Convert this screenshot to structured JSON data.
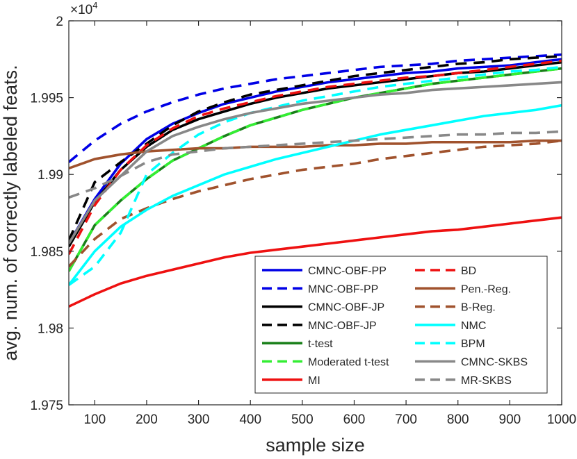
{
  "chart_data": {
    "type": "line",
    "title": "",
    "xlabel": "sample size",
    "ylabel": "avg. num. of correctly labeled feats.",
    "xlim": [
      50,
      1000
    ],
    "ylim": [
      1.975,
      2.0
    ],
    "y_scale_base": "10",
    "y_scale_exp": "4",
    "x_ticks": [
      100,
      200,
      300,
      400,
      500,
      600,
      700,
      800,
      900,
      1000
    ],
    "x_tick_labels": [
      "100",
      "200",
      "300",
      "400",
      "500",
      "600",
      "700",
      "800",
      "900",
      "1000"
    ],
    "y_ticks": [
      1.975,
      1.98,
      1.985,
      1.99,
      1.995,
      2.0
    ],
    "y_tick_labels": [
      "1.975",
      "1.98",
      "1.985",
      "1.99",
      "1.995",
      "2"
    ],
    "grid": false,
    "legend_position": "bottom-right",
    "x": [
      50,
      100,
      150,
      200,
      250,
      300,
      350,
      400,
      450,
      500,
      550,
      600,
      650,
      700,
      750,
      800,
      850,
      900,
      950,
      1000
    ],
    "series": [
      {
        "name": "CMNC-OBF-PP",
        "color": "#0000e6",
        "dash": "solid",
        "values": [
          1.9855,
          1.9884,
          1.9907,
          1.9923,
          1.9933,
          1.994,
          1.9946,
          1.995,
          1.9954,
          1.9957,
          1.996,
          1.9962,
          1.9964,
          1.9966,
          1.9967,
          1.9969,
          1.997,
          1.9971,
          1.9973,
          1.9975
        ]
      },
      {
        "name": "MNC-OBF-PP",
        "color": "#0000e6",
        "dash": "dashed",
        "values": [
          1.9908,
          1.9922,
          1.9933,
          1.9941,
          1.9947,
          1.9952,
          1.9956,
          1.9959,
          1.9962,
          1.9964,
          1.9966,
          1.9968,
          1.997,
          1.9971,
          1.9972,
          1.9974,
          1.9975,
          1.9976,
          1.9977,
          1.9978
        ]
      },
      {
        "name": "CMNC-OBF-JP",
        "color": "#000000",
        "dash": "solid",
        "values": [
          1.9853,
          1.9882,
          1.9903,
          1.9918,
          1.9929,
          1.9936,
          1.9941,
          1.9946,
          1.995,
          1.9953,
          1.9956,
          1.9958,
          1.996,
          1.9962,
          1.9964,
          1.9966,
          1.9967,
          1.9969,
          1.9971,
          1.9973
        ]
      },
      {
        "name": "MNC-OBF-JP",
        "color": "#000000",
        "dash": "dashed",
        "values": [
          1.9857,
          1.9895,
          1.9908,
          1.992,
          1.9932,
          1.9941,
          1.9947,
          1.9952,
          1.9955,
          1.9958,
          1.9961,
          1.9964,
          1.9966,
          1.9968,
          1.997,
          1.9972,
          1.9973,
          1.9975,
          1.9976,
          1.9977
        ]
      },
      {
        "name": "t-test",
        "color": "#1a801a",
        "dash": "solid",
        "values": [
          1.9837,
          1.9867,
          1.9883,
          1.9897,
          1.9909,
          1.9917,
          1.9925,
          1.9932,
          1.9937,
          1.9942,
          1.9946,
          1.995,
          1.9953,
          1.9956,
          1.9959,
          1.9961,
          1.9963,
          1.9965,
          1.9967,
          1.9969
        ]
      },
      {
        "name": "Moderated t-test",
        "color": "#33ee33",
        "dash": "dashed",
        "values": [
          1.9837,
          1.9867,
          1.9883,
          1.9897,
          1.9909,
          1.9917,
          1.9925,
          1.9932,
          1.9937,
          1.9942,
          1.9946,
          1.995,
          1.9953,
          1.9956,
          1.9959,
          1.9961,
          1.9963,
          1.9965,
          1.9967,
          1.9969
        ]
      },
      {
        "name": "MI",
        "color": "#ee1111",
        "dash": "solid",
        "values": [
          1.9814,
          1.9822,
          1.9829,
          1.9834,
          1.9838,
          1.9842,
          1.9846,
          1.9849,
          1.9851,
          1.9853,
          1.9855,
          1.9857,
          1.9859,
          1.9861,
          1.9863,
          1.9864,
          1.9866,
          1.9868,
          1.987,
          1.9872
        ]
      },
      {
        "name": "BD",
        "color": "#ee1111",
        "dash": "dashed",
        "values": [
          1.9848,
          1.988,
          1.9903,
          1.9919,
          1.993,
          1.9938,
          1.9943,
          1.9947,
          1.9951,
          1.9954,
          1.9957,
          1.9959,
          1.9961,
          1.9963,
          1.9964,
          1.9966,
          1.9968,
          1.997,
          1.9972,
          1.9974
        ]
      },
      {
        "name": "Pen.-Reg.",
        "color": "#a0522d",
        "dash": "solid",
        "values": [
          1.9904,
          1.991,
          1.9913,
          1.9915,
          1.9916,
          1.9917,
          1.9917,
          1.9918,
          1.9918,
          1.9918,
          1.9919,
          1.9919,
          1.992,
          1.992,
          1.9921,
          1.9921,
          1.9921,
          1.9921,
          1.9922,
          1.9922
        ]
      },
      {
        "name": "B-Reg.",
        "color": "#a0522d",
        "dash": "dashed",
        "values": [
          1.984,
          1.9858,
          1.9871,
          1.9878,
          1.9884,
          1.9889,
          1.9893,
          1.9897,
          1.99,
          1.9903,
          1.9905,
          1.9907,
          1.991,
          1.9912,
          1.9914,
          1.9916,
          1.9918,
          1.9919,
          1.992,
          1.9922
        ]
      },
      {
        "name": "NMC",
        "color": "#00ffff",
        "dash": "solid",
        "values": [
          1.9828,
          1.985,
          1.9866,
          1.9877,
          1.9886,
          1.9893,
          1.99,
          1.9905,
          1.991,
          1.9914,
          1.9918,
          1.9922,
          1.9926,
          1.9929,
          1.9932,
          1.9935,
          1.9938,
          1.994,
          1.9942,
          1.9945
        ]
      },
      {
        "name": "BPM",
        "color": "#00ffff",
        "dash": "dashed",
        "values": [
          1.9828,
          1.984,
          1.9862,
          1.99,
          1.9914,
          1.9926,
          1.9934,
          1.994,
          1.9944,
          1.9948,
          1.9951,
          1.9954,
          1.9957,
          1.9959,
          1.9961,
          1.9963,
          1.9965,
          1.9967,
          1.9968,
          1.997
        ]
      },
      {
        "name": "CMNC-SKBS",
        "color": "#888888",
        "dash": "solid",
        "values": [
          1.9855,
          1.9883,
          1.9899,
          1.9915,
          1.9925,
          1.9931,
          1.9936,
          1.994,
          1.9943,
          1.9946,
          1.9948,
          1.995,
          1.9952,
          1.9953,
          1.9955,
          1.9956,
          1.9957,
          1.9958,
          1.9959,
          1.996
        ]
      },
      {
        "name": "MR-SKBS",
        "color": "#888888",
        "dash": "dashed",
        "values": [
          1.9885,
          1.9891,
          1.9899,
          1.9908,
          1.9913,
          1.9915,
          1.9917,
          1.9918,
          1.9919,
          1.992,
          1.9921,
          1.9922,
          1.9923,
          1.9924,
          1.9925,
          1.9926,
          1.9926,
          1.9927,
          1.9927,
          1.9928
        ]
      }
    ],
    "legend_rows": [
      [
        "CMNC-OBF-PP",
        "BD"
      ],
      [
        "MNC-OBF-PP",
        "Pen.-Reg."
      ],
      [
        "CMNC-OBF-JP",
        "B-Reg."
      ],
      [
        "MNC-OBF-JP",
        "NMC"
      ],
      [
        "t-test",
        "BPM"
      ],
      [
        "Moderated t-test",
        "CMNC-SKBS"
      ],
      [
        "MI",
        "MR-SKBS"
      ]
    ]
  }
}
